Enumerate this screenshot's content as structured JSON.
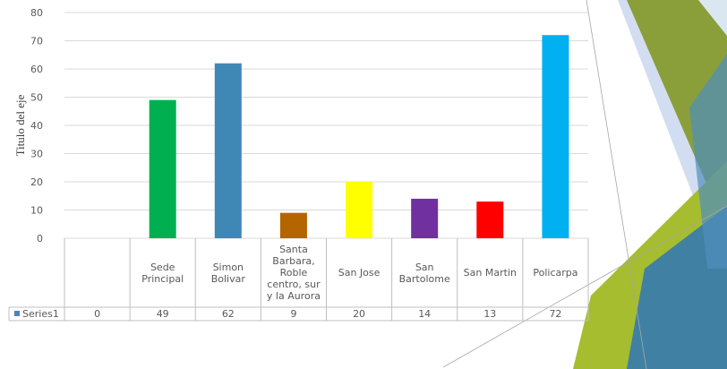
{
  "chart_data": {
    "type": "bar",
    "categories": [
      "",
      "Sede Principal",
      "Simon Bolivar",
      "Santa Barbara, Roble centro, sur y la Aurora",
      "San Jose",
      "San Bartolome",
      "San Martin",
      "Policarpa"
    ],
    "category_lines": [
      [
        ""
      ],
      [
        "Sede",
        "Principal"
      ],
      [
        "Simon",
        "Bolivar"
      ],
      [
        "Santa",
        "Barbara,",
        "Roble",
        "centro, sur",
        "y la Aurora"
      ],
      [
        "San Jose"
      ],
      [
        "San",
        "Bartolome"
      ],
      [
        "San Martin"
      ],
      [
        "Policarpa"
      ]
    ],
    "series": [
      {
        "name": "Series1",
        "values": [
          0,
          49,
          62,
          9,
          20,
          14,
          13,
          72
        ]
      }
    ],
    "bar_colors": [
      "#00b050",
      "#00b050",
      "#3f88b5",
      "#b46500",
      "#ffff00",
      "#7030a0",
      "#ff0000",
      "#00b0f0"
    ],
    "ylabel": "Titulo del eje",
    "ylim": [
      0,
      80
    ],
    "yticks": [
      0,
      10,
      20,
      30,
      40,
      50,
      60,
      70,
      80
    ],
    "grid": true,
    "data_table": true,
    "legend_color": "#4f81bd"
  }
}
